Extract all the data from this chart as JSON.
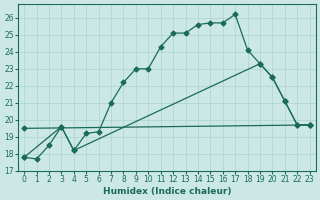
{
  "xlabel": "Humidex (Indice chaleur)",
  "bg_color": "#cce8e4",
  "grid_color": "#aad4cc",
  "line_color": "#1a6b5a",
  "xlim": [
    -0.5,
    23.5
  ],
  "ylim": [
    17,
    26.8
  ],
  "yticks": [
    17,
    18,
    19,
    20,
    21,
    22,
    23,
    24,
    25,
    26
  ],
  "xticks": [
    0,
    1,
    2,
    3,
    4,
    5,
    6,
    7,
    8,
    9,
    10,
    11,
    12,
    13,
    14,
    15,
    16,
    17,
    18,
    19,
    20,
    21,
    22,
    23
  ],
  "line1_x": [
    0,
    1,
    2,
    3,
    4,
    5,
    6,
    7,
    8,
    9,
    10,
    11,
    12,
    13,
    14,
    15,
    16,
    17,
    18,
    19,
    20,
    21,
    22,
    23
  ],
  "line1_y": [
    17.8,
    17.7,
    18.5,
    19.6,
    18.2,
    19.2,
    19.3,
    21.0,
    22.2,
    23.0,
    23.0,
    24.3,
    25.1,
    25.1,
    25.6,
    25.7,
    25.7,
    26.2,
    24.1,
    23.3,
    22.5,
    21.1,
    19.7,
    19.7
  ],
  "line2_x": [
    0,
    3,
    4,
    19,
    20,
    21,
    22,
    23
  ],
  "line2_y": [
    17.8,
    19.6,
    18.2,
    23.3,
    22.5,
    21.1,
    19.7,
    19.7
  ],
  "line3_x": [
    0,
    23
  ],
  "line3_y": [
    19.5,
    19.7
  ]
}
